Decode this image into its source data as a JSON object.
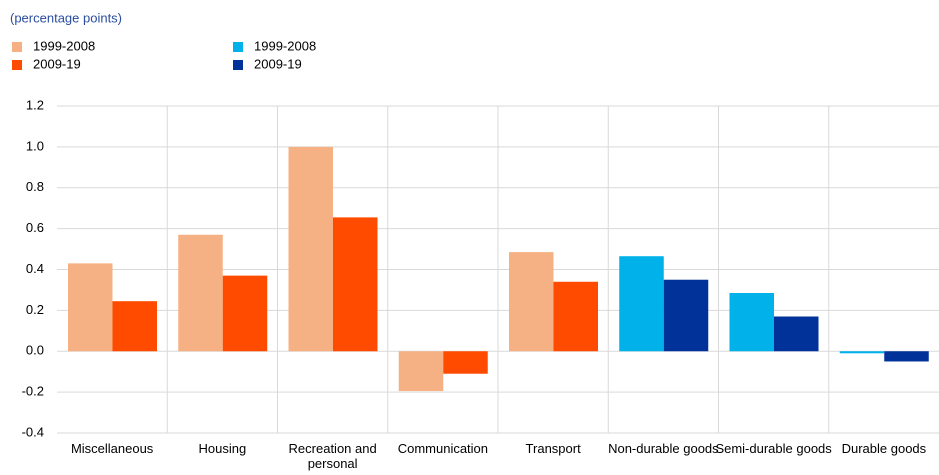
{
  "chart_data": {
    "type": "bar",
    "subtitle": "(percentage points)",
    "categories": [
      "Miscellaneous",
      "Housing",
      "Recreation and personal",
      "Communication",
      "Transport",
      "Non-durable goods",
      "Semi-durable goods",
      "Durable goods"
    ],
    "series": [
      {
        "name": "1999-2008",
        "color": "#f5b183",
        "values": [
          0.43,
          0.57,
          1.0,
          -0.195,
          0.485,
          null,
          null,
          null
        ]
      },
      {
        "name": "2009-19",
        "color": "#ff4b00",
        "values": [
          0.245,
          0.37,
          0.655,
          -0.11,
          0.34,
          null,
          null,
          null
        ]
      },
      {
        "name": "1999-2008",
        "color": "#00b1ea",
        "values": [
          null,
          null,
          null,
          null,
          null,
          0.465,
          0.285,
          -0.01
        ]
      },
      {
        "name": "2009-19",
        "color": "#003299",
        "values": [
          null,
          null,
          null,
          null,
          null,
          0.35,
          0.17,
          -0.05
        ]
      }
    ],
    "ylim": [
      -0.4,
      1.2
    ],
    "yticks": [
      -0.4,
      -0.2,
      {
        "value": 0,
        "label": "0.0"
      },
      0.2,
      0.4,
      0.6,
      0.8,
      {
        "value": 1,
        "label": "1.0"
      },
      1.2
    ],
    "grid": true
  }
}
